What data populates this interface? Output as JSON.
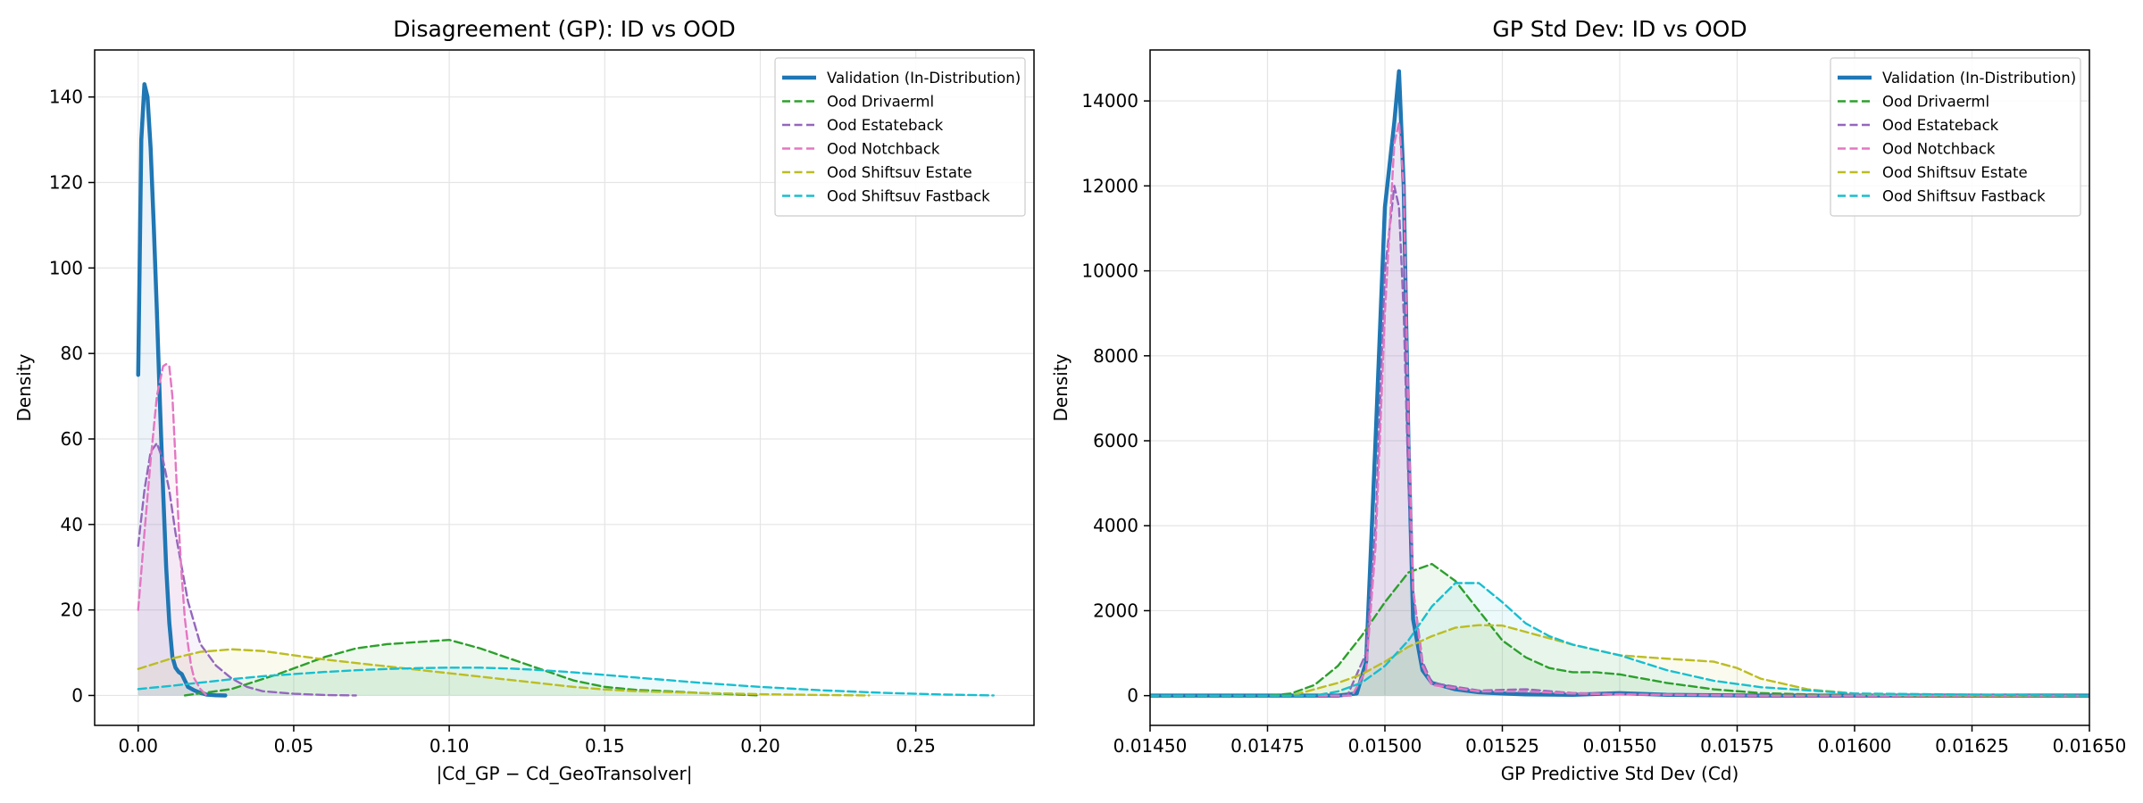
{
  "chart_data": [
    {
      "type": "line",
      "title": "Disagreement (GP): ID vs OOD",
      "xlabel": "|Cd_GP − Cd_GeoTransolver|",
      "ylabel": "Density",
      "xlim": [
        -0.014,
        0.288
      ],
      "ylim": [
        -7,
        151
      ],
      "xticks": [
        0.0,
        0.05,
        0.1,
        0.15,
        0.2,
        0.25
      ],
      "xtick_labels": [
        "0.00",
        "0.05",
        "0.10",
        "0.15",
        "0.20",
        "0.25"
      ],
      "yticks": [
        0,
        20,
        40,
        60,
        80,
        100,
        120,
        140
      ],
      "ytick_labels": [
        "0",
        "20",
        "40",
        "60",
        "80",
        "100",
        "120",
        "140"
      ],
      "grid": true,
      "legend_position": "top-right",
      "series": [
        {
          "name": "Validation (In-Distribution)",
          "color": "#1f77b4",
          "style": "solid",
          "x": [
            0.0,
            0.001,
            0.002,
            0.003,
            0.004,
            0.005,
            0.006,
            0.007,
            0.008,
            0.009,
            0.01,
            0.011,
            0.012,
            0.013,
            0.014,
            0.015,
            0.016,
            0.018,
            0.02,
            0.022,
            0.025,
            0.028
          ],
          "y": [
            75,
            130,
            143,
            140,
            128,
            110,
            90,
            68,
            48,
            30,
            17,
            9,
            6.5,
            5.5,
            5,
            3.5,
            2,
            1.2,
            0.6,
            0.2,
            0.05,
            0
          ]
        },
        {
          "name": "Ood Drivaerml",
          "color": "#2ca02c",
          "style": "dashed",
          "x": [
            0.015,
            0.03,
            0.045,
            0.06,
            0.07,
            0.08,
            0.09,
            0.1,
            0.11,
            0.12,
            0.13,
            0.14,
            0.15,
            0.16,
            0.17,
            0.18,
            0.19,
            0.2
          ],
          "y": [
            0,
            1.5,
            5,
            9,
            11,
            12,
            12.5,
            13,
            11,
            8.5,
            6,
            3.5,
            2,
            1.3,
            1,
            0.6,
            0.3,
            0
          ]
        },
        {
          "name": "Ood Estateback",
          "color": "#9467bd",
          "style": "dashed",
          "x": [
            0.0,
            0.002,
            0.004,
            0.006,
            0.008,
            0.01,
            0.012,
            0.014,
            0.016,
            0.018,
            0.02,
            0.025,
            0.03,
            0.035,
            0.04,
            0.05,
            0.06,
            0.07
          ],
          "y": [
            35,
            48,
            57,
            59,
            55,
            48,
            38,
            30,
            22,
            17,
            12,
            7,
            4,
            2,
            1,
            0.4,
            0.1,
            0
          ]
        },
        {
          "name": "Ood Notchback",
          "color": "#e377c2",
          "style": "dashed",
          "x": [
            0.0,
            0.002,
            0.004,
            0.006,
            0.008,
            0.009,
            0.01,
            0.011,
            0.012,
            0.013,
            0.014,
            0.015,
            0.016,
            0.017,
            0.018,
            0.02,
            0.022
          ],
          "y": [
            20,
            38,
            55,
            70,
            77,
            77.5,
            77,
            70,
            55,
            40,
            28,
            18,
            12,
            7,
            4,
            1.5,
            0
          ]
        },
        {
          "name": "Ood Shiftsuv Estate",
          "color": "#bcbd22",
          "style": "dashed",
          "x": [
            0.0,
            0.01,
            0.02,
            0.03,
            0.04,
            0.05,
            0.06,
            0.07,
            0.08,
            0.09,
            0.1,
            0.11,
            0.12,
            0.13,
            0.14,
            0.15,
            0.16,
            0.18,
            0.2,
            0.22,
            0.235
          ],
          "y": [
            6.2,
            8.5,
            10.2,
            10.8,
            10.4,
            9.4,
            8.4,
            7.6,
            6.8,
            6.0,
            5.2,
            4.4,
            3.6,
            2.8,
            2.0,
            1.4,
            1.0,
            0.6,
            0.3,
            0.1,
            0
          ]
        },
        {
          "name": "Ood Shiftsuv Fastback",
          "color": "#17becf",
          "style": "dashed",
          "x": [
            0.0,
            0.01,
            0.02,
            0.03,
            0.04,
            0.05,
            0.06,
            0.07,
            0.08,
            0.09,
            0.1,
            0.11,
            0.12,
            0.13,
            0.14,
            0.15,
            0.16,
            0.17,
            0.18,
            0.2,
            0.22,
            0.24,
            0.26,
            0.275
          ],
          "y": [
            1.5,
            2.2,
            3.0,
            3.8,
            4.5,
            5.0,
            5.5,
            5.9,
            6.2,
            6.4,
            6.5,
            6.5,
            6.3,
            5.9,
            5.4,
            4.8,
            4.2,
            3.6,
            3.0,
            2.0,
            1.2,
            0.6,
            0.2,
            0
          ]
        }
      ]
    },
    {
      "type": "line",
      "title": "GP Std Dev: ID vs OOD",
      "xlabel": "GP Predictive Std Dev (Cd)",
      "ylabel": "Density",
      "xlim": [
        0.0145,
        0.0165
      ],
      "ylim": [
        -700,
        15200
      ],
      "xticks": [
        0.0145,
        0.01475,
        0.015,
        0.01525,
        0.0155,
        0.01575,
        0.016,
        0.01625,
        0.0165
      ],
      "xtick_labels": [
        "0.01450",
        "0.01475",
        "0.01500",
        "0.01525",
        "0.01550",
        "0.01575",
        "0.01600",
        "0.01625",
        "0.01650"
      ],
      "yticks": [
        0,
        2000,
        4000,
        6000,
        8000,
        10000,
        12000,
        14000
      ],
      "ytick_labels": [
        "0",
        "2000",
        "4000",
        "6000",
        "8000",
        "10000",
        "12000",
        "14000"
      ],
      "grid": true,
      "legend_position": "top-right",
      "series": [
        {
          "name": "Validation (In-Distribution)",
          "color": "#1f77b4",
          "style": "solid",
          "x": [
            0.0145,
            0.0149,
            0.01494,
            0.01496,
            0.01498,
            0.015,
            0.01502,
            0.01503,
            0.01504,
            0.01505,
            0.01506,
            0.01508,
            0.0151,
            0.01515,
            0.0152,
            0.01525,
            0.0153,
            0.0154,
            0.0155,
            0.0156,
            0.0158,
            0.0165
          ],
          "y": [
            0,
            0,
            50,
            800,
            6000,
            11500,
            13500,
            14700,
            12000,
            6000,
            1800,
            600,
            300,
            150,
            80,
            50,
            30,
            20,
            60,
            20,
            0,
            0
          ]
        },
        {
          "name": "Ood Drivaerml",
          "color": "#2ca02c",
          "style": "dashed",
          "x": [
            0.0145,
            0.01475,
            0.0148,
            0.01485,
            0.0149,
            0.01495,
            0.015,
            0.01505,
            0.0151,
            0.01515,
            0.0152,
            0.01525,
            0.0153,
            0.01535,
            0.0154,
            0.01545,
            0.0155,
            0.0156,
            0.0157,
            0.0158,
            0.016,
            0.0165
          ],
          "y": [
            0,
            0,
            50,
            250,
            700,
            1400,
            2200,
            2900,
            3100,
            2700,
            2000,
            1300,
            900,
            650,
            550,
            550,
            500,
            300,
            150,
            60,
            0,
            0
          ]
        },
        {
          "name": "Ood Estateback",
          "color": "#9467bd",
          "style": "dashed",
          "x": [
            0.0145,
            0.01492,
            0.01496,
            0.01498,
            0.015,
            0.01502,
            0.01503,
            0.01504,
            0.01505,
            0.01506,
            0.01508,
            0.0151,
            0.0152,
            0.0153,
            0.0154,
            0.0155,
            0.0158,
            0.0165
          ],
          "y": [
            0,
            0,
            1000,
            4000,
            10000,
            12000,
            11500,
            9000,
            5000,
            2500,
            800,
            300,
            120,
            150,
            60,
            40,
            0,
            0
          ]
        },
        {
          "name": "Ood Notchback",
          "color": "#e377c2",
          "style": "dashed",
          "x": [
            0.0145,
            0.01493,
            0.01496,
            0.01498,
            0.015,
            0.01502,
            0.01503,
            0.01504,
            0.01505,
            0.01506,
            0.01508,
            0.0151,
            0.0152,
            0.0153,
            0.0154,
            0.0155,
            0.0158,
            0.0165
          ],
          "y": [
            0,
            0,
            600,
            3500,
            9000,
            13000,
            13500,
            12000,
            6500,
            2500,
            700,
            250,
            100,
            100,
            50,
            30,
            0,
            0
          ]
        },
        {
          "name": "Ood Shiftsuv Estate",
          "color": "#bcbd22",
          "style": "dashed",
          "x": [
            0.0145,
            0.0148,
            0.0149,
            0.01495,
            0.015,
            0.01505,
            0.0151,
            0.01515,
            0.0152,
            0.01525,
            0.0153,
            0.0154,
            0.0155,
            0.0156,
            0.0157,
            0.01575,
            0.0158,
            0.0159,
            0.016,
            0.0161,
            0.0165
          ],
          "y": [
            0,
            0,
            300,
            500,
            800,
            1150,
            1400,
            1600,
            1660,
            1650,
            1500,
            1200,
            950,
            870,
            800,
            650,
            400,
            150,
            50,
            10,
            0
          ]
        },
        {
          "name": "Ood Shiftsuv Fastback",
          "color": "#17becf",
          "style": "dashed",
          "x": [
            0.0145,
            0.01485,
            0.0149,
            0.01495,
            0.015,
            0.01505,
            0.0151,
            0.01515,
            0.0152,
            0.01525,
            0.0153,
            0.01535,
            0.0154,
            0.0155,
            0.0156,
            0.0157,
            0.0158,
            0.016,
            0.0165
          ],
          "y": [
            0,
            0,
            100,
            300,
            700,
            1300,
            2100,
            2650,
            2650,
            2200,
            1700,
            1400,
            1200,
            950,
            600,
            350,
            200,
            50,
            0
          ]
        }
      ]
    }
  ]
}
